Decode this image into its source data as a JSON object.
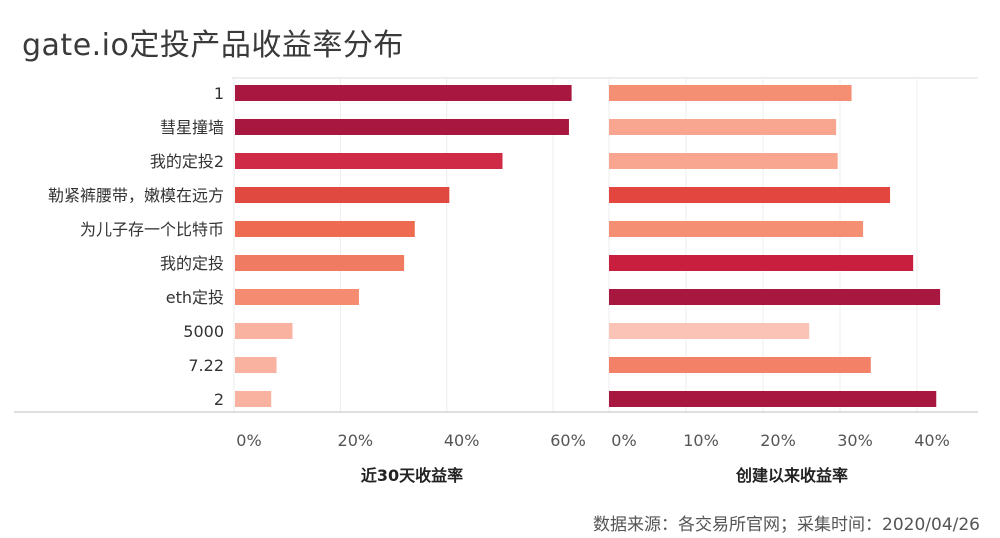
{
  "title": "gate.io定投产品收益率分布",
  "source": "数据来源：各交易所官网；采集时间：2020/04/26",
  "chart_data": [
    {
      "type": "bar",
      "orientation": "horizontal",
      "categories": [
        "1",
        "彗星撞墙",
        "我的定投2",
        "勒紧裤腰带，嫩模在远方",
        "为儿子存一个比特币",
        "我的定投",
        "eth定投",
        "5000",
        "7.22",
        "2"
      ],
      "values": [
        63.5,
        63,
        50.5,
        40.5,
        34,
        32,
        23.5,
        11,
        8,
        7
      ],
      "colors": [
        "#a8173f",
        "#a8173f",
        "#cf2a46",
        "#e0493f",
        "#ee6b52",
        "#f07b63",
        "#f58b70",
        "#f9b2a0",
        "#f9b2a0",
        "#f9b2a0"
      ],
      "xlabel": "近30天收益率",
      "xticks": [
        "0%",
        "20%",
        "40%",
        "60%"
      ],
      "xlim": [
        0,
        70
      ],
      "grid": true
    },
    {
      "type": "bar",
      "orientation": "horizontal",
      "categories": [
        "1",
        "彗星撞墙",
        "我的定投2",
        "勒紧裤腰带，嫩模在远方",
        "为儿子存一个比特币",
        "我的定投",
        "eth定投",
        "5000",
        "7.22",
        "2"
      ],
      "values": [
        31.5,
        29.5,
        29.7,
        36.5,
        33,
        39.5,
        43,
        26,
        34,
        42.5
      ],
      "colors": [
        "#f58f74",
        "#f8a690",
        "#f8a690",
        "#e2463f",
        "#f58f74",
        "#c91f3e",
        "#a8173f",
        "#fbc3b5",
        "#f28168",
        "#a8173f"
      ],
      "xlabel": "创建以来收益率",
      "xticks": [
        "0%",
        "10%",
        "20%",
        "30%",
        "40%"
      ],
      "xlim": [
        0,
        45
      ],
      "grid": true
    }
  ]
}
